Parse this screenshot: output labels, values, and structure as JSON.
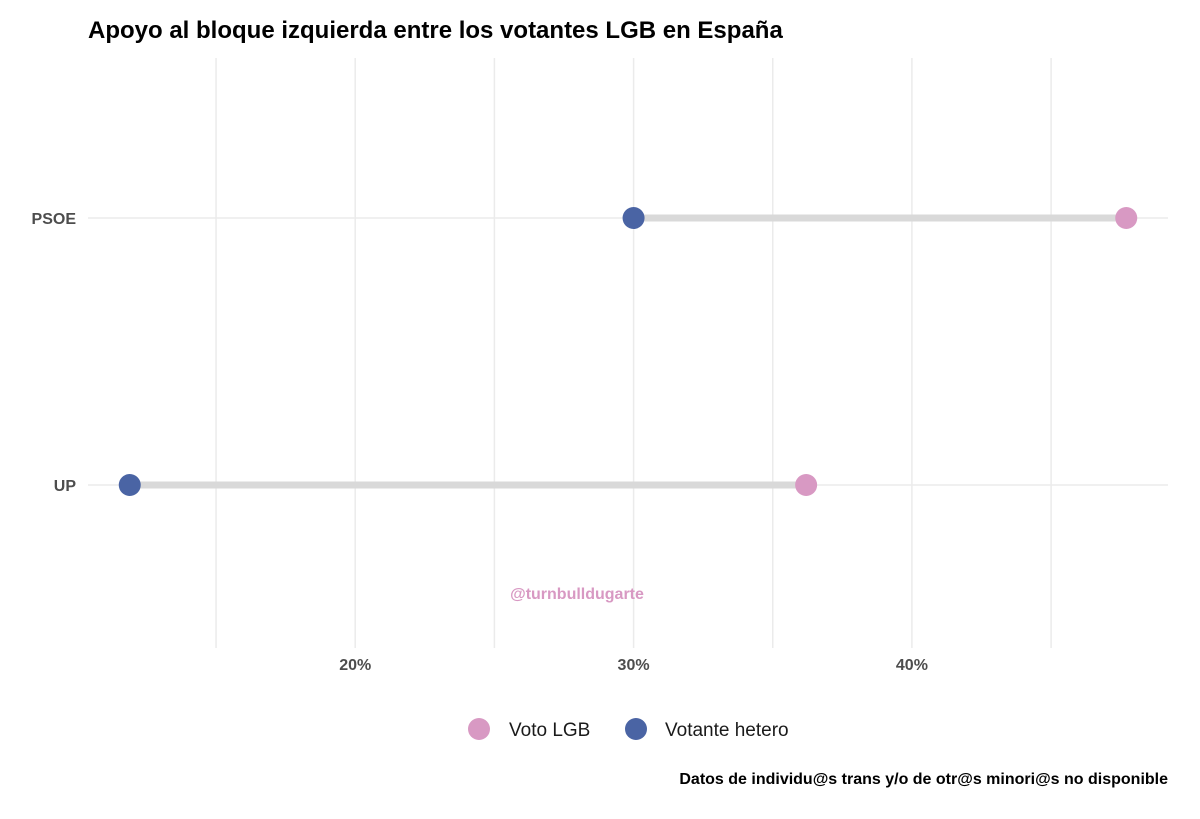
{
  "chart_data": {
    "type": "dumbbell",
    "title": "Apoyo al bloque izquierda entre los votantes LGB en España",
    "categories": [
      "PSOE",
      "UP"
    ],
    "series": [
      {
        "name": "Voto LGB",
        "color": "#d899c3",
        "values": [
          47.7,
          36.2
        ]
      },
      {
        "name": "Votante hetero",
        "color": "#4a64a4",
        "values": [
          30.0,
          11.9
        ]
      }
    ],
    "x_ticks": [
      {
        "value": 20,
        "label": "20%"
      },
      {
        "value": 30,
        "label": "30%"
      },
      {
        "value": 40,
        "label": "40%"
      }
    ],
    "xlim": [
      10.4,
      49.2
    ],
    "xlabel": "",
    "ylabel": "",
    "grid": true,
    "legend_position": "bottom",
    "watermark": "@turnbulldugarte",
    "caption": "Datos de individu@s trans y/o de otr@s minori@s no disponible",
    "segment_color": "#d9d9d9",
    "grid_color": "#ebebeb",
    "watermark_color": "#d899c3"
  }
}
